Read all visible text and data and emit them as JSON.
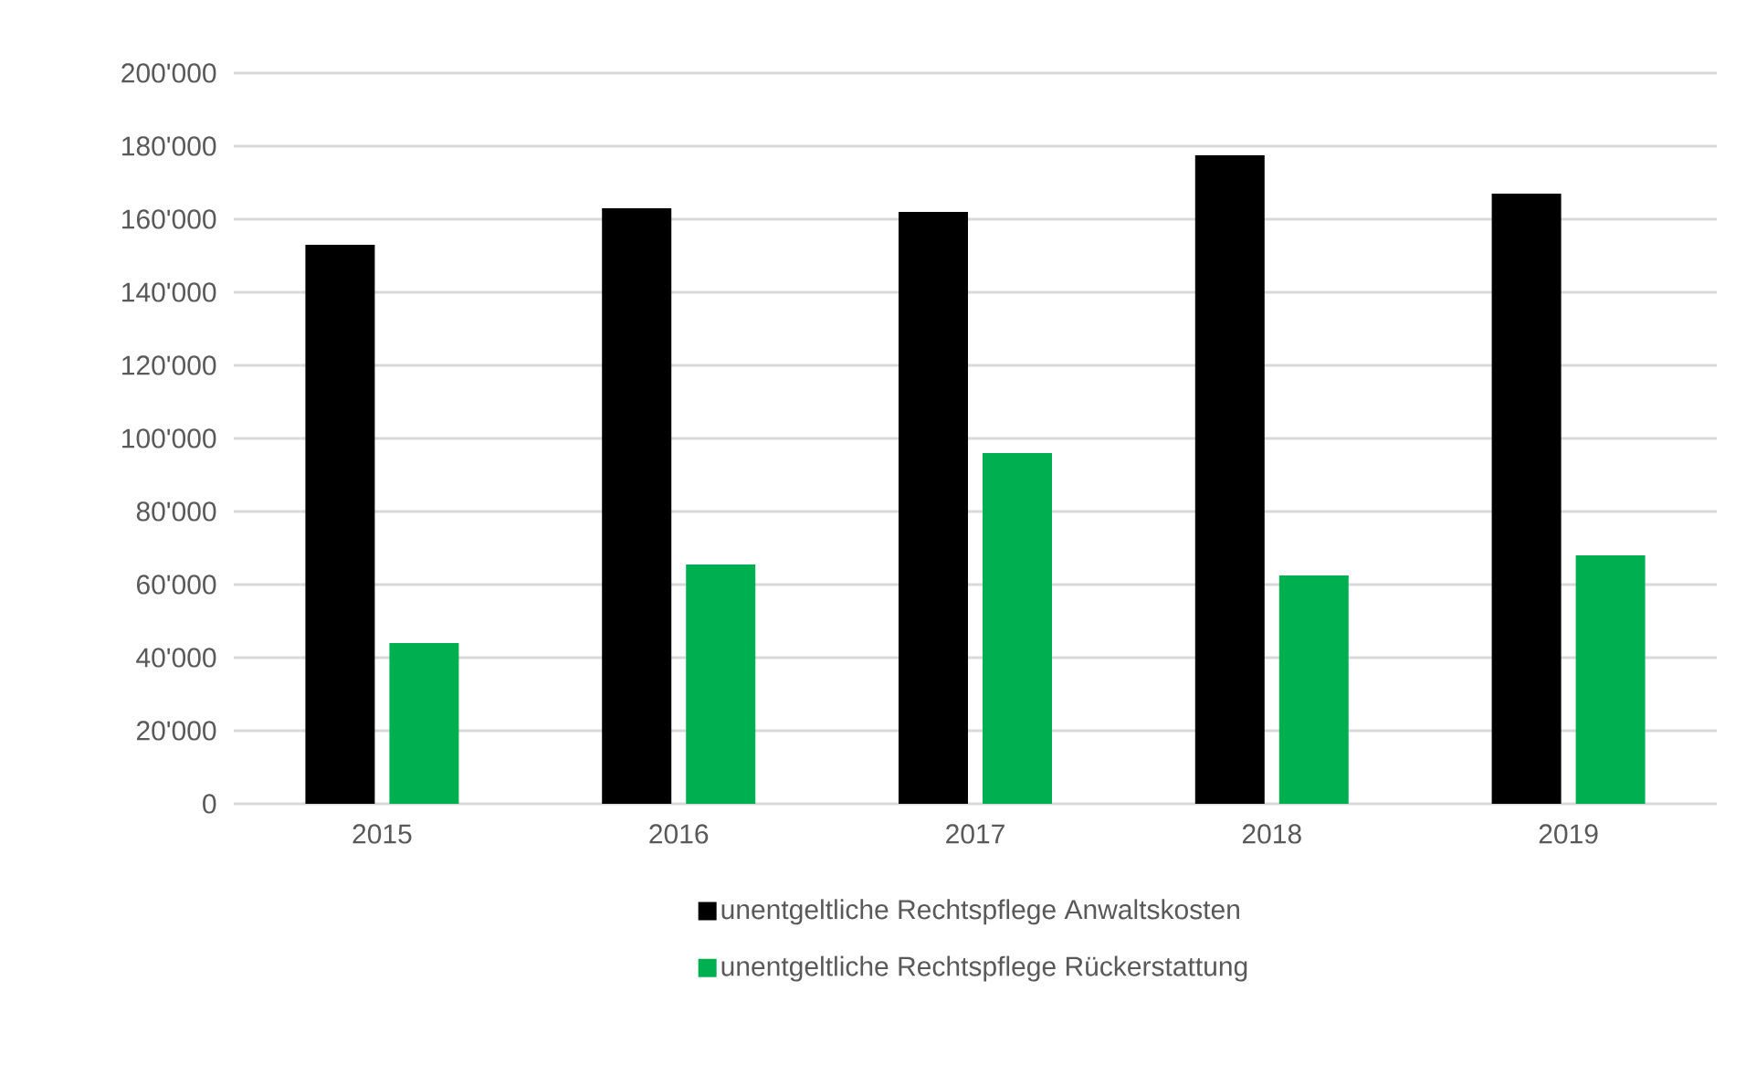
{
  "chart_data": {
    "type": "bar",
    "categories": [
      "2015",
      "2016",
      "2017",
      "2018",
      "2019"
    ],
    "series": [
      {
        "name": "unentgeltliche Rechtspflege Anwaltskosten",
        "color": "#000000",
        "values": [
          153000,
          163000,
          162000,
          177500,
          167000
        ]
      },
      {
        "name": "unentgeltliche Rechtspflege Rückerstattung",
        "color": "#00b050",
        "values": [
          44000,
          65500,
          96000,
          62500,
          68000
        ]
      }
    ],
    "ylim": [
      0,
      200000
    ],
    "yticks": [
      {
        "value": 0,
        "label": "0"
      },
      {
        "value": 20000,
        "label": "20'000"
      },
      {
        "value": 40000,
        "label": "40'000"
      },
      {
        "value": 60000,
        "label": "60'000"
      },
      {
        "value": 80000,
        "label": "80'000"
      },
      {
        "value": 100000,
        "label": "100'000"
      },
      {
        "value": 120000,
        "label": "120'000"
      },
      {
        "value": 140000,
        "label": "140'000"
      },
      {
        "value": 160000,
        "label": "160'000"
      },
      {
        "value": 180000,
        "label": "180'000"
      },
      {
        "value": 200000,
        "label": "200'000"
      }
    ],
    "grid": "y",
    "legend": "bottom"
  }
}
